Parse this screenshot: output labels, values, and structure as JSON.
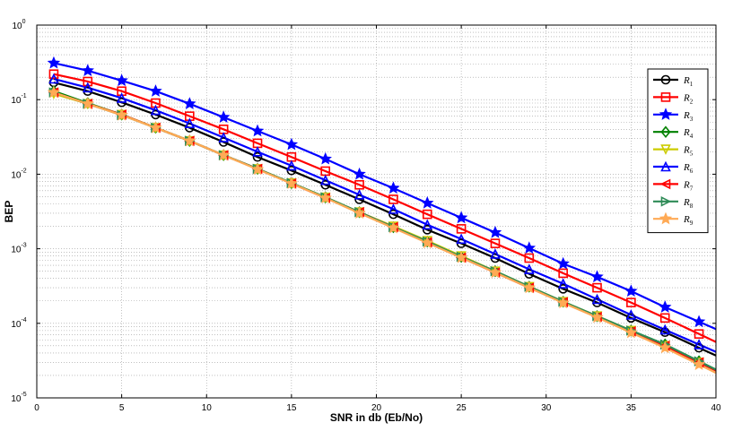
{
  "chart_data": {
    "type": "line",
    "title": "",
    "xlabel": "SNR in db (Eb/No)",
    "ylabel": "BEP",
    "xlim": [
      0,
      40
    ],
    "ylim": [
      1e-05,
      1
    ],
    "yscale": "log",
    "grid": true,
    "legend_position": "right",
    "x_ticks": [
      "0",
      "5",
      "10",
      "15",
      "20",
      "25",
      "30",
      "35",
      "40"
    ],
    "y_ticks": [
      {
        "base": "10",
        "exp": "0"
      },
      {
        "base": "10",
        "exp": "-1"
      },
      {
        "base": "10",
        "exp": "-2"
      },
      {
        "base": "10",
        "exp": "-3"
      },
      {
        "base": "10",
        "exp": "-4"
      },
      {
        "base": "10",
        "exp": "-5"
      }
    ],
    "x": [
      1,
      3,
      5,
      7,
      9,
      11,
      13,
      15,
      17,
      19,
      21,
      23,
      25,
      27,
      29,
      31,
      33,
      35,
      37,
      39
    ],
    "series": [
      {
        "name": "R",
        "sub": "1",
        "color": "#000000",
        "marker": "circle",
        "values": [
          0.17,
          0.13,
          0.092,
          0.063,
          0.042,
          0.027,
          0.017,
          0.0112,
          0.0072,
          0.0046,
          0.0029,
          0.0018,
          0.00118,
          0.00075,
          0.00046,
          0.00029,
          0.00019,
          0.000118,
          7.6e-05,
          4.7e-05
        ]
      },
      {
        "name": "R",
        "sub": "2",
        "color": "#ff0000",
        "marker": "square",
        "values": [
          0.22,
          0.175,
          0.13,
          0.09,
          0.06,
          0.04,
          0.026,
          0.017,
          0.011,
          0.0072,
          0.0046,
          0.0029,
          0.00185,
          0.00118,
          0.00075,
          0.00047,
          0.0003,
          0.00019,
          0.000118,
          7.2e-05
        ]
      },
      {
        "name": "R",
        "sub": "3",
        "color": "#0000ff",
        "marker": "star",
        "values": [
          0.31,
          0.245,
          0.18,
          0.13,
          0.088,
          0.058,
          0.038,
          0.025,
          0.016,
          0.01,
          0.0065,
          0.0041,
          0.0026,
          0.00165,
          0.00102,
          0.00063,
          0.00042,
          0.00027,
          0.000165,
          0.000105
        ]
      },
      {
        "name": "R",
        "sub": "4",
        "color": "#008000",
        "marker": "diamond",
        "values": [
          0.13,
          0.09,
          0.063,
          0.042,
          0.028,
          0.018,
          0.0118,
          0.0076,
          0.0049,
          0.0031,
          0.00195,
          0.00125,
          0.00078,
          0.0005,
          0.00031,
          0.000195,
          0.000125,
          8e-05,
          5.2e-05,
          3.1e-05
        ]
      },
      {
        "name": "R",
        "sub": "5",
        "color": "#cccc00",
        "marker": "triangle-down",
        "values": [
          0.12,
          0.088,
          0.063,
          0.042,
          0.028,
          0.018,
          0.0118,
          0.0076,
          0.0049,
          0.0031,
          0.002,
          0.00128,
          0.0008,
          0.0005,
          0.00031,
          0.000195,
          0.000125,
          8e-05,
          5e-05,
          3e-05
        ]
      },
      {
        "name": "R",
        "sub": "6",
        "color": "#0000ff",
        "marker": "triangle-up",
        "values": [
          0.19,
          0.145,
          0.105,
          0.072,
          0.048,
          0.031,
          0.02,
          0.013,
          0.0083,
          0.0053,
          0.0034,
          0.0021,
          0.00135,
          0.00085,
          0.00053,
          0.00034,
          0.00021,
          0.00013,
          8.2e-05,
          5.2e-05
        ]
      },
      {
        "name": "R",
        "sub": "7",
        "color": "#ff0000",
        "marker": "triangle-left",
        "values": [
          0.125,
          0.088,
          0.063,
          0.042,
          0.028,
          0.018,
          0.0118,
          0.0075,
          0.0048,
          0.0031,
          0.00195,
          0.00122,
          0.00076,
          0.00048,
          0.0003,
          0.000192,
          0.000122,
          7.8e-05,
          5e-05,
          3e-05
        ]
      },
      {
        "name": "R",
        "sub": "8",
        "color": "#2e8b57",
        "marker": "triangle-right",
        "values": [
          0.125,
          0.088,
          0.062,
          0.042,
          0.028,
          0.018,
          0.0118,
          0.0076,
          0.0049,
          0.0031,
          0.00195,
          0.00125,
          0.00078,
          0.0005,
          0.00031,
          0.000195,
          0.000125,
          8e-05,
          5.2e-05,
          3.1e-05
        ]
      },
      {
        "name": "R",
        "sub": "9",
        "color": "#ffaa55",
        "marker": "star",
        "values": [
          0.125,
          0.088,
          0.062,
          0.042,
          0.028,
          0.018,
          0.0116,
          0.0075,
          0.0048,
          0.003,
          0.0019,
          0.0012,
          0.00076,
          0.00048,
          0.0003,
          0.000188,
          0.00012,
          7.5e-05,
          4.7e-05,
          2.8e-05
        ]
      }
    ]
  }
}
